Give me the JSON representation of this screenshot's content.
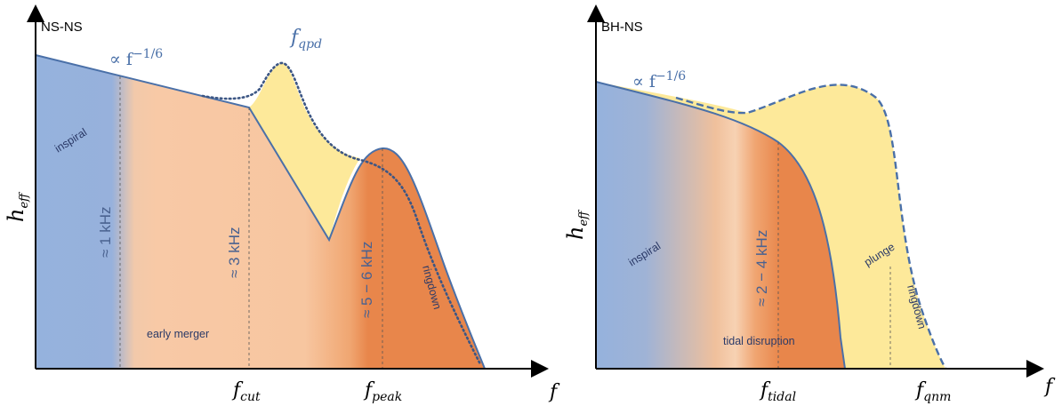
{
  "left_panel": {
    "title": "NS-NS",
    "y_axis_label": "h",
    "y_axis_sub": "eff",
    "x_axis_label": "f",
    "power_law": "∝ f",
    "power_law_exp": "−1/6",
    "qpd_label": "f",
    "qpd_sub": "qpd",
    "cut_tick": "f",
    "cut_tick_sub": "cut",
    "peak_tick": "f",
    "peak_tick_sub": "peak",
    "region_inspiral": "inspiral",
    "region_early_merger": "early merger",
    "region_ringdown": "ringdown",
    "freq_1": "≈ 1 kHz",
    "freq_2": "≈ 3 kHz",
    "freq_3": "≈ 5 − 6 kHz"
  },
  "right_panel": {
    "title": "BH-NS",
    "y_axis_label": "h",
    "y_axis_sub": "eff",
    "x_axis_label": "f",
    "power_law": "∝ f",
    "power_law_exp": "−1/6",
    "tidal_tick": "f",
    "tidal_tick_sub": "tidal",
    "qnm_tick": "f",
    "qnm_tick_sub": "qnm",
    "region_inspiral": "inspiral",
    "region_tidal_disruption": "tidal disruption",
    "region_plunge": "plunge",
    "region_ringdown": "ringdown",
    "freq_1": "≈ 2 − 4 kHz"
  },
  "colors": {
    "inspiral_blue": "#95b2dd",
    "merger_peach": "#f7c8a4",
    "ringdown_orange": "#e8854a",
    "qpd_yellow": "#fde99a",
    "curve_blue": "#4a70a8",
    "dotted_curve": "#3c5684"
  }
}
